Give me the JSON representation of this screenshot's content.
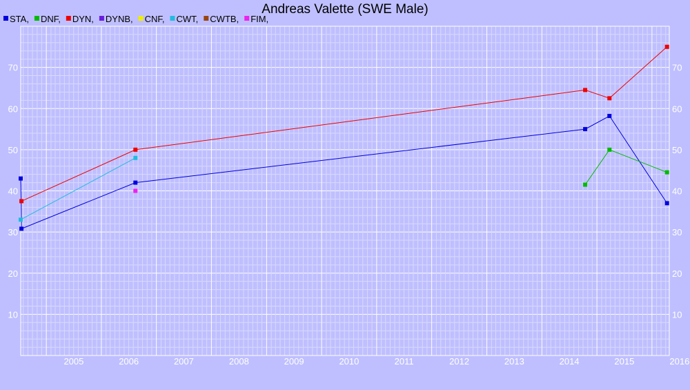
{
  "chart_data": {
    "type": "line",
    "title": "Andreas Valette (SWE Male)",
    "xlabel": "",
    "ylabel": "",
    "xlim": [
      "2004-07-15",
      "2016-04-25"
    ],
    "ylim": [
      0,
      80
    ],
    "x_ticks": [
      "2005",
      "2006",
      "2007",
      "2008",
      "2009",
      "2010",
      "2011",
      "2012",
      "2013",
      "2014",
      "2015",
      "2016"
    ],
    "y_ticks": [
      10,
      20,
      30,
      40,
      50,
      60,
      70
    ],
    "grid": true,
    "legend_position": "top-left",
    "legend": [
      {
        "label": "STA,",
        "color": "#0000dd"
      },
      {
        "label": "DNF,",
        "color": "#00bb00"
      },
      {
        "label": "DYN,",
        "color": "#ee0000"
      },
      {
        "label": "DYNB,",
        "color": "#6a1ddd"
      },
      {
        "label": "CNF,",
        "color": "#eeee00"
      },
      {
        "label": "CWT,",
        "color": "#22bbdd"
      },
      {
        "label": "CWTB,",
        "color": "#994411"
      },
      {
        "label": "FIM,",
        "color": "#ee22ee"
      }
    ],
    "series": [
      {
        "name": "STA",
        "color": "#0000dd",
        "points": [
          {
            "x": "2004-07-15",
            "y": 43
          },
          {
            "x": "2004-07-20",
            "y": 30.8
          },
          {
            "x": "2006-08-15",
            "y": 42
          },
          {
            "x": "2014-10-15",
            "y": 55
          },
          {
            "x": "2015-03-25",
            "y": 58.2
          },
          {
            "x": "2016-04-10",
            "y": 37
          }
        ]
      },
      {
        "name": "DNF",
        "color": "#00bb00",
        "points": [
          {
            "x": "2014-10-15",
            "y": 41.5
          },
          {
            "x": "2015-03-25",
            "y": 50
          },
          {
            "x": "2016-04-10",
            "y": 44.5
          }
        ]
      },
      {
        "name": "DYN",
        "color": "#ee0000",
        "points": [
          {
            "x": "2004-07-20",
            "y": 37.5
          },
          {
            "x": "2006-08-15",
            "y": 50
          },
          {
            "x": "2014-10-15",
            "y": 64.5
          },
          {
            "x": "2015-03-25",
            "y": 62.5
          },
          {
            "x": "2016-04-10",
            "y": 75
          }
        ]
      },
      {
        "name": "CWT",
        "color": "#22bbdd",
        "points": [
          {
            "x": "2004-07-15",
            "y": 33
          },
          {
            "x": "2006-08-15",
            "y": 48
          }
        ]
      },
      {
        "name": "FIM",
        "color": "#ee22ee",
        "points": [
          {
            "x": "2006-08-15",
            "y": 40
          }
        ]
      }
    ]
  }
}
